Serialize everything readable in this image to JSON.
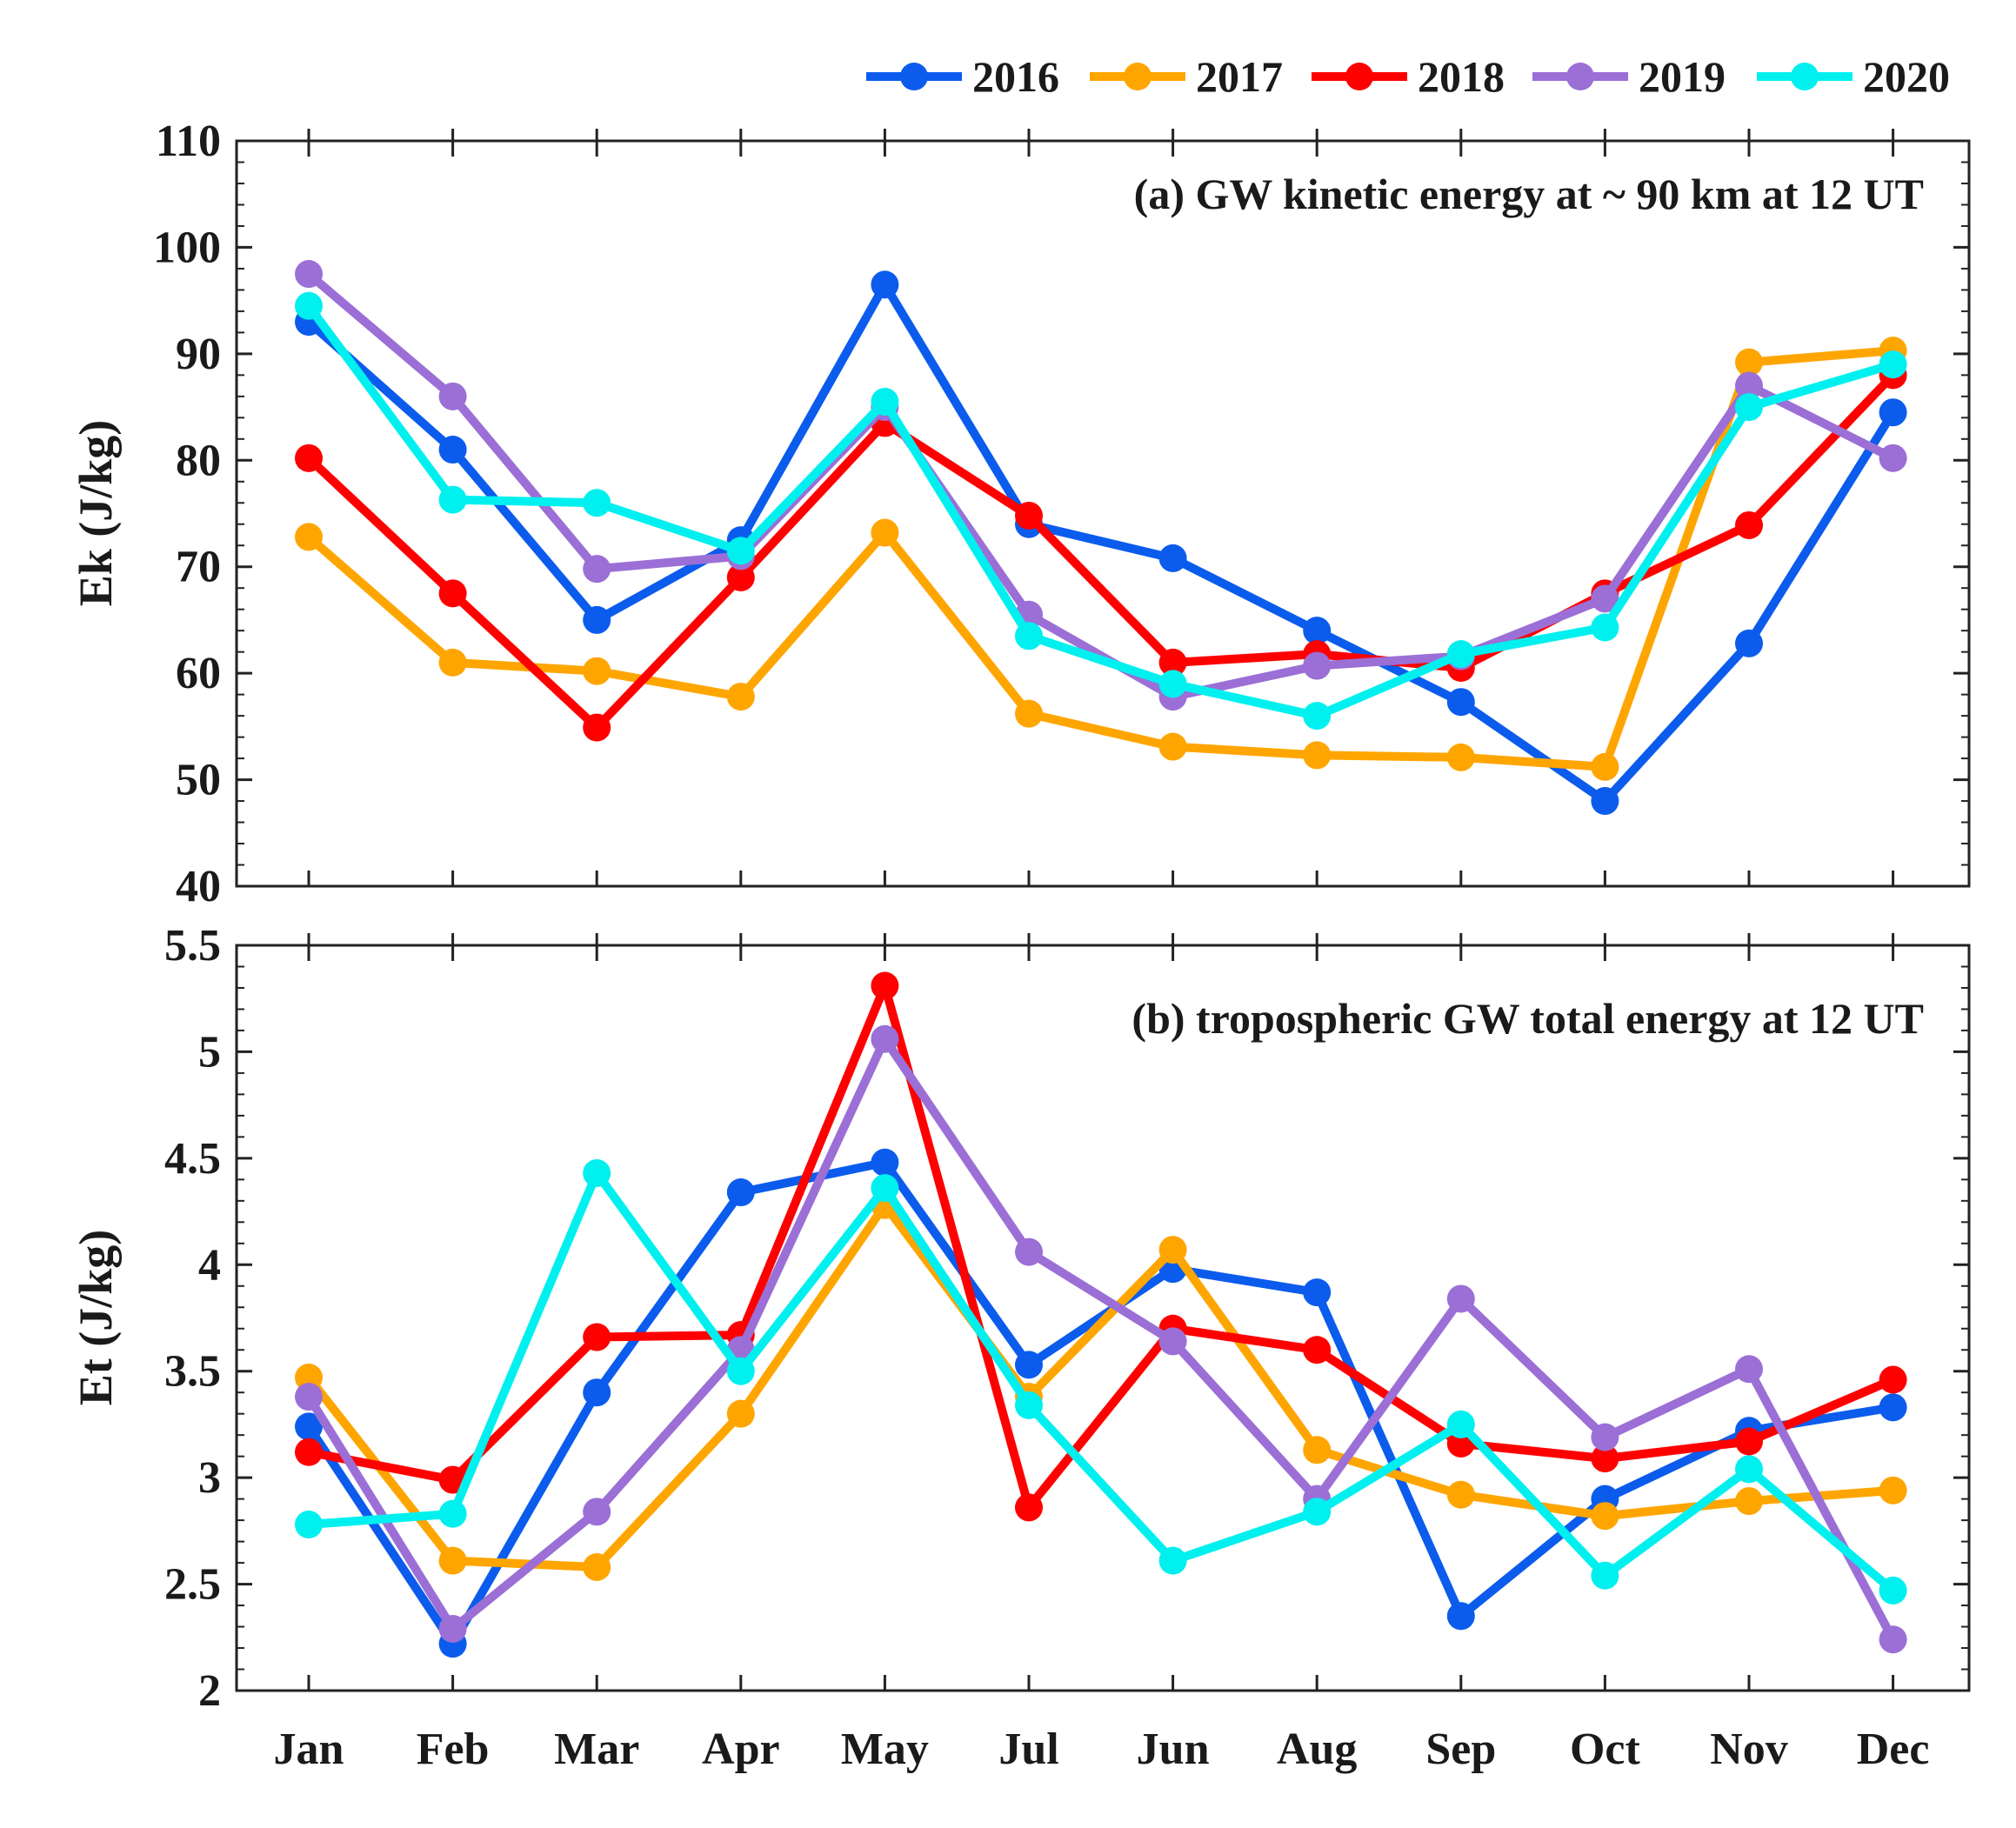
{
  "chart_data": [
    {
      "type": "line",
      "id": "a",
      "title": "(a) GW kinetic energy at ~ 90 km at 12 UT",
      "xlabel": "",
      "ylabel": "Ek (J/kg)",
      "ylim": [
        40,
        110
      ],
      "yticks": [
        40,
        50,
        60,
        70,
        80,
        90,
        100,
        110
      ],
      "ytick_labels": [
        "40",
        "50",
        "60",
        "70",
        "80",
        "90",
        "100",
        "110"
      ],
      "categories": [
        "Jan",
        "Feb",
        "Mar",
        "Apr",
        "May",
        "Jul",
        "Jun",
        "Aug",
        "Sep",
        "Oct",
        "Nov",
        "Dec"
      ],
      "series": [
        {
          "name": "2016",
          "color": "#0b5ced",
          "values": [
            93,
            81,
            65,
            72.5,
            96.5,
            74,
            70.8,
            64,
            57.3,
            48,
            62.8,
            84.5
          ]
        },
        {
          "name": "2017",
          "color": "#ffa500",
          "values": [
            72.8,
            61,
            60.2,
            57.8,
            73.2,
            56.2,
            53.1,
            52.3,
            52.1,
            51.2,
            89.2,
            90.3
          ]
        },
        {
          "name": "2018",
          "color": "#ff0000",
          "values": [
            80.2,
            67.5,
            54.9,
            69,
            83.5,
            74.8,
            61,
            61.8,
            60.5,
            67.5,
            73.9,
            88
          ]
        },
        {
          "name": "2019",
          "color": "#9b6fd6",
          "values": [
            97.5,
            86,
            69.8,
            71,
            85,
            65.5,
            57.8,
            60.7,
            61.6,
            67,
            87,
            80.2
          ]
        },
        {
          "name": "2020",
          "color": "#00f0f0",
          "values": [
            94.5,
            76.3,
            76,
            71.5,
            85.5,
            63.5,
            59,
            56,
            61.8,
            64.3,
            85,
            89
          ]
        }
      ]
    },
    {
      "type": "line",
      "id": "b",
      "title": "(b) tropospheric GW total energy at 12 UT",
      "xlabel": "",
      "ylabel": "Et (J/kg)",
      "ylim": [
        2,
        5.5
      ],
      "yticks": [
        2,
        2.5,
        3,
        3.5,
        4,
        4.5,
        5,
        5.5
      ],
      "ytick_labels": [
        "2",
        "2.5",
        "3",
        "3.5",
        "4",
        "4.5",
        "5",
        "5.5"
      ],
      "categories": [
        "Jan",
        "Feb",
        "Mar",
        "Apr",
        "May",
        "Jul",
        "Jun",
        "Aug",
        "Sep",
        "Oct",
        "Nov",
        "Dec"
      ],
      "series": [
        {
          "name": "2016",
          "color": "#0b5ced",
          "values": [
            3.24,
            2.22,
            3.4,
            4.34,
            4.48,
            3.53,
            3.98,
            3.87,
            2.35,
            2.9,
            3.22,
            3.33
          ]
        },
        {
          "name": "2017",
          "color": "#ffa500",
          "values": [
            3.47,
            2.61,
            2.58,
            3.3,
            4.28,
            3.38,
            4.07,
            3.13,
            2.92,
            2.82,
            2.89,
            2.94
          ]
        },
        {
          "name": "2018",
          "color": "#ff0000",
          "values": [
            3.12,
            2.99,
            3.66,
            3.67,
            5.31,
            2.86,
            3.7,
            3.6,
            3.16,
            3.09,
            3.17,
            3.46
          ]
        },
        {
          "name": "2019",
          "color": "#9b6fd6",
          "values": [
            3.38,
            2.29,
            2.84,
            3.6,
            5.06,
            4.06,
            3.64,
            2.9,
            3.84,
            3.19,
            3.51,
            2.24
          ]
        },
        {
          "name": "2020",
          "color": "#00f0f0",
          "values": [
            2.78,
            2.83,
            4.43,
            3.5,
            4.36,
            3.34,
            2.61,
            2.84,
            3.25,
            2.54,
            3.04,
            2.47
          ]
        }
      ]
    }
  ],
  "legend": {
    "position": "top-right",
    "items": [
      {
        "name": "2016",
        "color": "#0b5ced"
      },
      {
        "name": "2017",
        "color": "#ffa500"
      },
      {
        "name": "2018",
        "color": "#ff0000"
      },
      {
        "name": "2019",
        "color": "#9b6fd6"
      },
      {
        "name": "2020",
        "color": "#00f0f0"
      }
    ]
  }
}
